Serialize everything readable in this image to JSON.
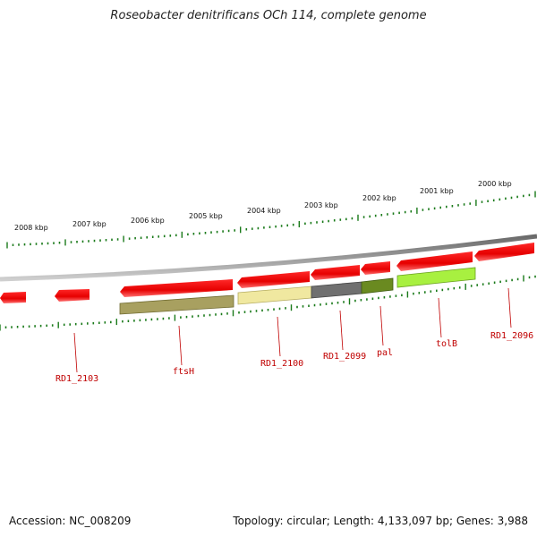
{
  "title": "Roseobacter denitrificans OCh 114, complete genome",
  "footer": {
    "accession": "Accession: NC_008209",
    "topology": "Topology: circular; Length: 4,133,097 bp; Genes: 3,988"
  },
  "scale_labels": [
    "2008 kbp",
    "2007 kbp",
    "2006 kbp",
    "2005 kbp",
    "2004 kbp",
    "2003 kbp",
    "2002 kbp",
    "2001 kbp",
    "2000 kbp"
  ],
  "genes": [
    {
      "id": "g1",
      "label": ""
    },
    {
      "id": "g2",
      "label": "RD1_2103"
    },
    {
      "id": "g3",
      "label": "ftsH"
    },
    {
      "id": "g4",
      "label": "RD1_2100"
    },
    {
      "id": "g5",
      "label": "RD1_2099"
    },
    {
      "id": "g6",
      "label": "pal"
    },
    {
      "id": "g7",
      "label": "tolB"
    },
    {
      "id": "g8",
      "label": "RD1_2096"
    }
  ],
  "colors": {
    "gene_forward": "#e60000",
    "backbone": "#888888",
    "tick": "#1a7a1a",
    "label": "#c00000",
    "ftsH_cog": "#a8a060",
    "RD1_2100_cog": "#f0e8a0",
    "RD1_2099_cog": "#707070",
    "pal_cog": "#6a8a20",
    "tolB_cog": "#a8f040"
  }
}
